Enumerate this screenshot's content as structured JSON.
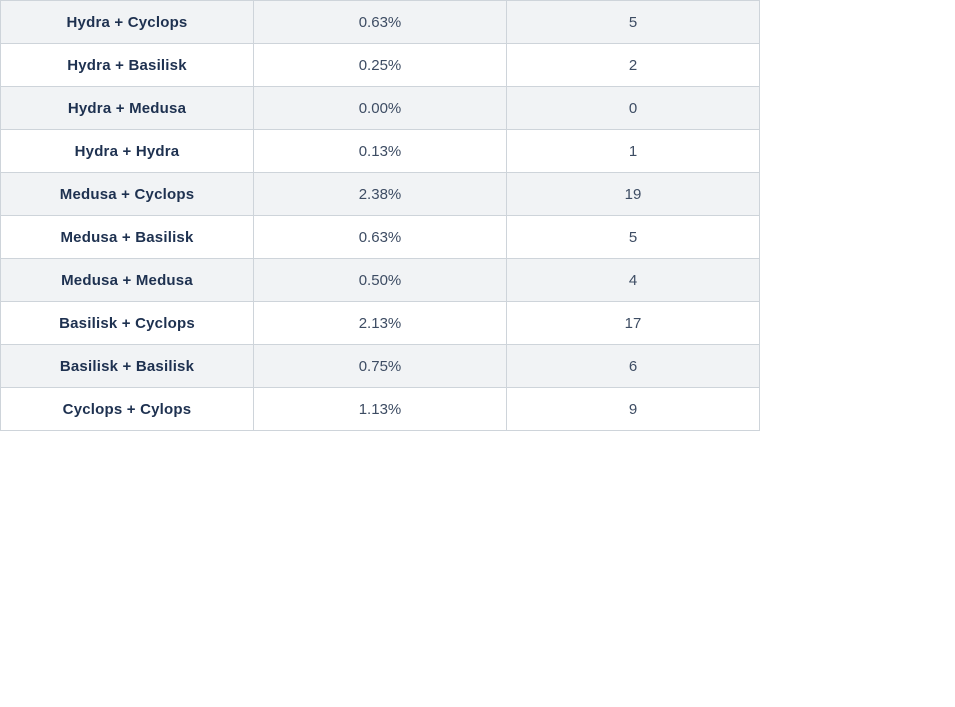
{
  "table": {
    "rows": [
      {
        "pair": "Hydra + Cyclops",
        "percent": "0.63%",
        "count": "5"
      },
      {
        "pair": "Hydra + Basilisk",
        "percent": "0.25%",
        "count": "2"
      },
      {
        "pair": "Hydra + Medusa",
        "percent": "0.00%",
        "count": "0"
      },
      {
        "pair": "Hydra + Hydra",
        "percent": "0.13%",
        "count": "1"
      },
      {
        "pair": "Medusa + Cyclops",
        "percent": "2.38%",
        "count": "19"
      },
      {
        "pair": "Medusa + Basilisk",
        "percent": "0.63%",
        "count": "5"
      },
      {
        "pair": "Medusa + Medusa",
        "percent": "0.50%",
        "count": "4"
      },
      {
        "pair": "Basilisk + Cyclops",
        "percent": "2.13%",
        "count": "17"
      },
      {
        "pair": "Basilisk + Basilisk",
        "percent": "0.75%",
        "count": "6"
      },
      {
        "pair": "Cyclops + Cylops",
        "percent": "1.13%",
        "count": "9"
      }
    ],
    "colors": {
      "stripe_bg": "#f1f3f5",
      "border": "#ced4da",
      "pair_text": "#1e3150",
      "value_text": "#3d4c63"
    }
  },
  "chart_data": {
    "type": "table",
    "columns": [
      "pair",
      "percent",
      "count"
    ],
    "rows": [
      [
        "Hydra + Cyclops",
        "0.63%",
        5
      ],
      [
        "Hydra + Basilisk",
        "0.25%",
        2
      ],
      [
        "Hydra + Medusa",
        "0.00%",
        0
      ],
      [
        "Hydra + Hydra",
        "0.13%",
        1
      ],
      [
        "Medusa + Cyclops",
        "2.38%",
        19
      ],
      [
        "Medusa + Basilisk",
        "0.63%",
        5
      ],
      [
        "Medusa + Medusa",
        "0.50%",
        4
      ],
      [
        "Basilisk + Cyclops",
        "2.13%",
        17
      ],
      [
        "Basilisk + Basilisk",
        "0.75%",
        6
      ],
      [
        "Cyclops + Cylops",
        "1.13%",
        9
      ]
    ],
    "title": "",
    "layout_hints": {
      "striped_rows": "odd rows (1st, 3rd, ...) shaded",
      "all_cells_centered": true,
      "first_column_bold": true
    }
  }
}
